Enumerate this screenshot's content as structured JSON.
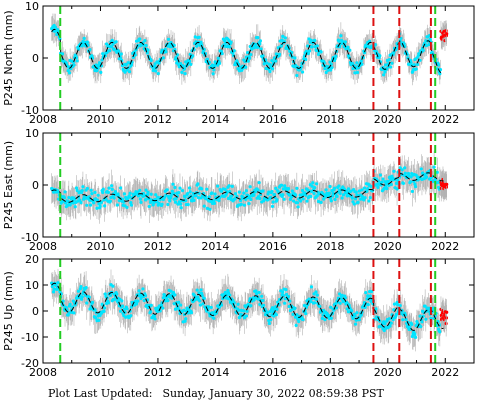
{
  "footer": {
    "label": "Plot Last Updated:",
    "timestamp": "Sunday, January 30, 2022 08:59:38 PST"
  },
  "colors": {
    "data": "#00e5ff",
    "errorbar": "#b3b3b3",
    "recent": "#ff0000",
    "model": "#000000",
    "green_event": "#22cc22",
    "red_event": "#dd1111"
  },
  "chart_data": [
    {
      "type": "scatter",
      "station": "P245",
      "component": "North",
      "ylabel": "P245 North (mm)",
      "xlim": [
        2008.0,
        2023.0
      ],
      "ylim": [
        -10,
        10
      ],
      "xticks": [
        2008,
        2010,
        2012,
        2014,
        2016,
        2018,
        2020,
        2022
      ],
      "yticks": [
        -10,
        0,
        10
      ],
      "seasonal_amplitude": 2.5,
      "scatter_spread": 1.5,
      "error_bar": 2.0,
      "model_line": {
        "style": "dashed",
        "color": "#000000"
      },
      "model_offsets": [
        {
          "from": 2008.0,
          "to": 2008.6,
          "offset": 3.0
        },
        {
          "from": 2008.6,
          "to": 2019.5,
          "offset": 0.5
        },
        {
          "from": 2019.5,
          "to": 2020.4,
          "offset": 0.3
        },
        {
          "from": 2020.4,
          "to": 2021.5,
          "offset": 0.8
        },
        {
          "from": 2021.5,
          "to": 2022.1,
          "offset": -0.5
        }
      ],
      "event_lines": [
        {
          "x": 2008.6,
          "color": "green"
        },
        {
          "x": 2019.5,
          "color": "red"
        },
        {
          "x": 2020.4,
          "color": "red"
        },
        {
          "x": 2021.5,
          "color": "red"
        },
        {
          "x": 2021.65,
          "color": "green"
        }
      ],
      "recent_points": {
        "from": 2021.85,
        "to": 2022.05,
        "center": 4.5,
        "spread": 1.5
      }
    },
    {
      "type": "scatter",
      "station": "P245",
      "component": "East",
      "ylabel": "P245 East (mm)",
      "xlim": [
        2008.0,
        2023.0
      ],
      "ylim": [
        -10,
        10
      ],
      "xticks": [
        2008,
        2010,
        2012,
        2014,
        2016,
        2018,
        2020,
        2022
      ],
      "yticks": [
        -10,
        0,
        10
      ],
      "seasonal_amplitude": 0.7,
      "scatter_spread": 2.0,
      "error_bar": 2.5,
      "model_line": {
        "style": "dashed",
        "color": "#000000"
      },
      "model_offsets": [
        {
          "from": 2008.0,
          "to": 2008.6,
          "offset": -1.0
        },
        {
          "from": 2008.6,
          "to": 2019.5,
          "offset": -2.0
        },
        {
          "from": 2019.5,
          "to": 2020.4,
          "offset": 0.2
        },
        {
          "from": 2020.4,
          "to": 2021.5,
          "offset": 1.0
        },
        {
          "from": 2021.5,
          "to": 2022.1,
          "offset": 0.8
        }
      ],
      "trend_per_year": 0.1,
      "event_lines": [
        {
          "x": 2008.6,
          "color": "green"
        },
        {
          "x": 2019.5,
          "color": "red"
        },
        {
          "x": 2020.4,
          "color": "red"
        },
        {
          "x": 2021.5,
          "color": "red"
        },
        {
          "x": 2021.65,
          "color": "green"
        }
      ],
      "recent_points": {
        "from": 2021.85,
        "to": 2022.05,
        "center": 0.0,
        "spread": 1.5
      }
    },
    {
      "type": "scatter",
      "station": "P245",
      "component": "Up",
      "ylabel": "P245 Up (mm)",
      "xlim": [
        2008.0,
        2023.0
      ],
      "ylim": [
        -20,
        20
      ],
      "xticks": [
        2008,
        2010,
        2012,
        2014,
        2016,
        2018,
        2020,
        2022
      ],
      "yticks": [
        -20,
        -10,
        0,
        10,
        20
      ],
      "seasonal_amplitude": 4.0,
      "scatter_spread": 3.5,
      "error_bar": 5.0,
      "model_line": {
        "style": "dashed",
        "color": "#000000"
      },
      "model_offsets": [
        {
          "from": 2008.0,
          "to": 2008.6,
          "offset": 5.0
        },
        {
          "from": 2008.6,
          "to": 2019.5,
          "offset": 2.0
        },
        {
          "from": 2019.5,
          "to": 2020.4,
          "offset": -1.0
        },
        {
          "from": 2020.4,
          "to": 2021.5,
          "offset": -2.0
        },
        {
          "from": 2021.5,
          "to": 2022.1,
          "offset": -1.0
        }
      ],
      "trend_per_year": -0.25,
      "event_lines": [
        {
          "x": 2008.6,
          "color": "green"
        },
        {
          "x": 2019.5,
          "color": "red"
        },
        {
          "x": 2020.4,
          "color": "red"
        },
        {
          "x": 2021.5,
          "color": "red"
        },
        {
          "x": 2021.65,
          "color": "green"
        }
      ],
      "recent_points": {
        "from": 2021.85,
        "to": 2022.05,
        "center": -2.0,
        "spread": 3.0
      }
    }
  ]
}
